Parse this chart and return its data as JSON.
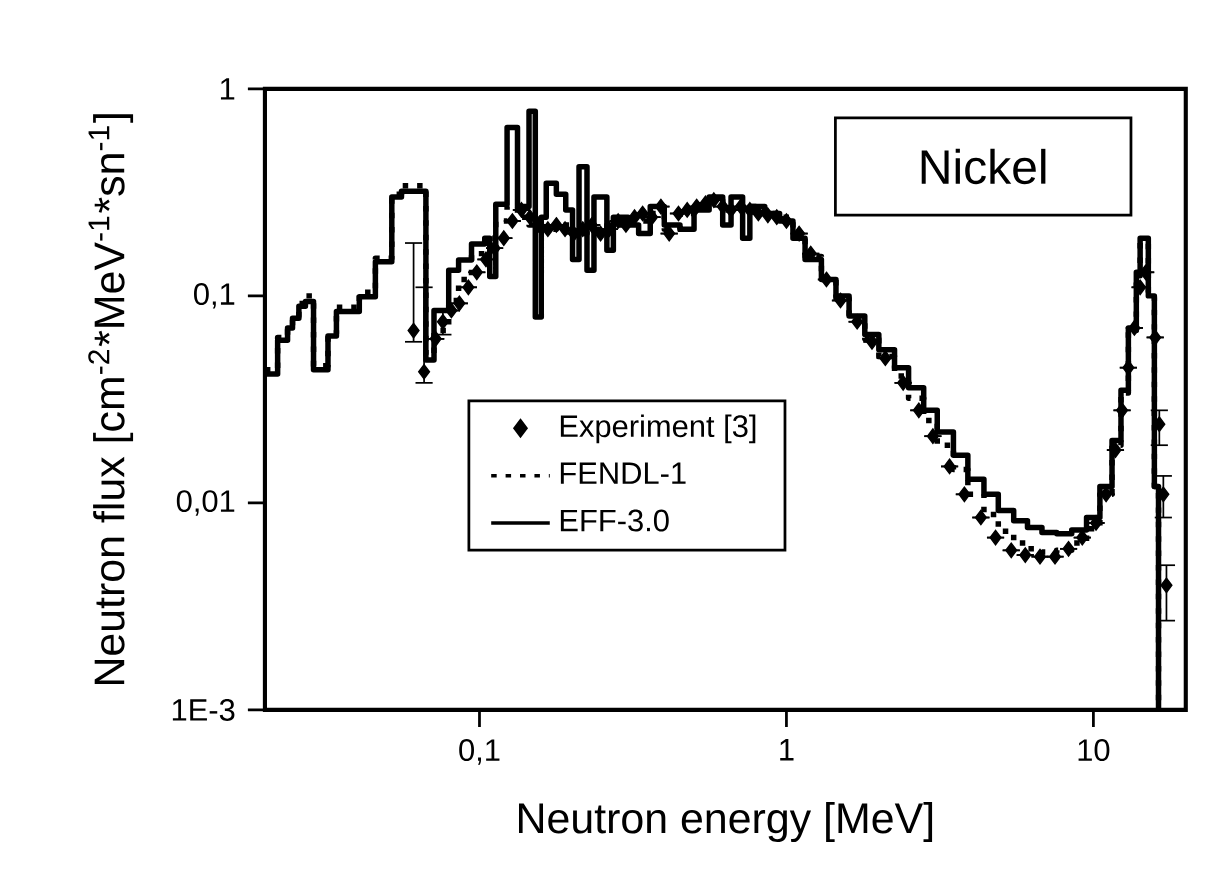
{
  "chart_data": {
    "type": "step",
    "xlabel": "Neutron energy [MeV]",
    "ylabel": "Neutron flux [cm$^{-2}$*MeV$^{-1}$*sn$^{-1}$]",
    "annotations": [
      "Nickel"
    ],
    "log": "xy",
    "xlim": [
      0.02,
      20
    ],
    "ylim": [
      0.001,
      1
    ],
    "xticks": [
      {
        "value": 0.1,
        "label": "0,1"
      },
      1,
      10
    ],
    "yticks": [
      {
        "value": 0.001,
        "label": "1E-3"
      },
      {
        "value": 0.01,
        "label": "0,01"
      },
      {
        "value": 0.1,
        "label": "0,1"
      },
      1
    ],
    "legend": "center left",
    "series": [
      {
        "name": "Experiment [3]",
        "type": "scatter",
        "color": "#000000",
        "marker": "diamond",
        "x": [
          0.061,
          0.066,
          0.072,
          0.076,
          0.081,
          0.086,
          0.092,
          0.098,
          0.105,
          0.112,
          0.12,
          0.128,
          0.137,
          0.146,
          0.156,
          0.167,
          0.178,
          0.19,
          0.203,
          0.217,
          0.232,
          0.248,
          0.265,
          0.283,
          0.3,
          0.32,
          0.34,
          0.365,
          0.39,
          0.415,
          0.445,
          0.475,
          0.51,
          0.545,
          0.58,
          0.62,
          0.66,
          0.71,
          0.76,
          0.81,
          0.87,
          0.93,
          1.0,
          1.1,
          1.2,
          1.35,
          1.5,
          1.7,
          1.9,
          2.1,
          2.4,
          2.7,
          3.0,
          3.4,
          3.8,
          4.3,
          4.8,
          5.4,
          6.0,
          6.7,
          7.5,
          8.3,
          9.2,
          10.2,
          11.0,
          11.8,
          12.4,
          13.0,
          13.6,
          14.2,
          14.8,
          15.9,
          16.4,
          16.9,
          17.3
        ],
        "values": [
          0.068,
          0.043,
          0.062,
          0.075,
          0.085,
          0.092,
          0.11,
          0.13,
          0.15,
          0.17,
          0.19,
          0.23,
          0.26,
          0.24,
          0.22,
          0.21,
          0.22,
          0.21,
          0.2,
          0.21,
          0.22,
          0.2,
          0.21,
          0.23,
          0.22,
          0.24,
          0.25,
          0.24,
          0.27,
          0.2,
          0.25,
          0.26,
          0.27,
          0.28,
          0.29,
          0.27,
          0.26,
          0.27,
          0.26,
          0.25,
          0.245,
          0.24,
          0.23,
          0.2,
          0.16,
          0.12,
          0.095,
          0.075,
          0.06,
          0.05,
          0.038,
          0.028,
          0.021,
          0.015,
          0.011,
          0.0085,
          0.0068,
          0.0059,
          0.0056,
          0.0055,
          0.0055,
          0.006,
          0.0068,
          0.008,
          0.011,
          0.018,
          0.028,
          0.045,
          0.07,
          0.11,
          0.13,
          0.063,
          0.024,
          0.011,
          0.004
        ],
        "errors": [
          [
            0.06,
            0.18
          ],
          [
            0.038,
            0.11
          ],
          null,
          [
            0.065,
            0.085
          ],
          null,
          null,
          null,
          null,
          null,
          null,
          null,
          null,
          null,
          null,
          null,
          null,
          null,
          null,
          null,
          null,
          null,
          null,
          null,
          null,
          null,
          null,
          null,
          null,
          null,
          null,
          null,
          null,
          null,
          null,
          null,
          null,
          null,
          null,
          null,
          null,
          null,
          null,
          null,
          null,
          null,
          null,
          null,
          null,
          null,
          null,
          null,
          null,
          null,
          null,
          null,
          null,
          null,
          null,
          null,
          null,
          null,
          null,
          null,
          null,
          null,
          null,
          null,
          null,
          null,
          null,
          null,
          null,
          [
            0.019,
            0.028
          ],
          [
            0.0085,
            0.0135
          ],
          [
            0.0027,
            0.005
          ]
        ]
      },
      {
        "name": "FENDL-1",
        "color": "#000000",
        "line_style": "dotted",
        "marker": "none",
        "x": [
          0.02,
          0.022,
          0.0237,
          0.0246,
          0.0258,
          0.0271,
          0.0288,
          0.0321,
          0.0342,
          0.0406,
          0.0458,
          0.0518,
          0.0557,
          0.0669,
          0.0711,
          0.0794,
          0.0855,
          0.0942,
          0.104,
          0.113,
          0.123,
          0.133,
          0.145,
          0.159,
          0.178,
          0.201,
          0.224,
          0.26,
          0.305,
          0.36,
          0.4,
          0.45,
          0.5,
          0.56,
          0.62,
          0.72,
          0.85,
          0.95,
          1.05,
          1.15,
          1.3,
          1.45,
          1.6,
          1.8,
          2.0,
          2.25,
          2.5,
          2.8,
          3.1,
          3.5,
          3.9,
          4.4,
          4.9,
          5.5,
          6.1,
          6.8,
          7.6,
          8.5,
          9.5,
          10.5,
          11.5,
          12.3,
          13.0,
          13.8,
          14.2,
          15.1,
          15.8,
          16.3
        ],
        "values": [
          0.044,
          0.063,
          0.072,
          0.08,
          0.092,
          0.1,
          0.046,
          0.066,
          0.088,
          0.104,
          0.152,
          0.31,
          0.34,
          0.052,
          0.068,
          0.095,
          0.12,
          0.16,
          0.19,
          0.23,
          0.27,
          0.24,
          0.22,
          0.21,
          0.22,
          0.2,
          0.21,
          0.22,
          0.23,
          0.25,
          0.21,
          0.25,
          0.27,
          0.29,
          0.26,
          0.27,
          0.25,
          0.24,
          0.2,
          0.155,
          0.12,
          0.097,
          0.077,
          0.062,
          0.051,
          0.041,
          0.032,
          0.025,
          0.019,
          0.0145,
          0.011,
          0.0088,
          0.0073,
          0.0064,
          0.006,
          0.0058,
          0.0059,
          0.0064,
          0.0075,
          0.011,
          0.019,
          0.034,
          0.068,
          0.125,
          0.18,
          0.098,
          0.012,
          0.001
        ]
      },
      {
        "name": "EFF-3.0",
        "color": "#000000",
        "line_style": "solid",
        "marker": "none",
        "x": [
          0.02,
          0.022,
          0.0237,
          0.0246,
          0.0258,
          0.0271,
          0.0288,
          0.0321,
          0.0342,
          0.0406,
          0.0458,
          0.0518,
          0.0557,
          0.0669,
          0.0711,
          0.0794,
          0.0855,
          0.0942,
          0.104,
          0.108,
          0.113,
          0.123,
          0.133,
          0.145,
          0.152,
          0.159,
          0.165,
          0.178,
          0.191,
          0.201,
          0.211,
          0.224,
          0.236,
          0.26,
          0.273,
          0.286,
          0.305,
          0.33,
          0.36,
          0.4,
          0.45,
          0.5,
          0.56,
          0.62,
          0.66,
          0.72,
          0.76,
          0.85,
          0.95,
          1.05,
          1.15,
          1.3,
          1.45,
          1.6,
          1.8,
          2.0,
          2.25,
          2.5,
          2.8,
          3.1,
          3.5,
          3.9,
          4.4,
          4.9,
          5.5,
          6.1,
          6.8,
          7.6,
          8.5,
          9.5,
          10.5,
          11.5,
          12.3,
          13.0,
          13.8,
          14.2,
          15.1,
          15.8,
          16.3
        ],
        "values": [
          0.042,
          0.061,
          0.07,
          0.078,
          0.089,
          0.094,
          0.044,
          0.064,
          0.084,
          0.099,
          0.146,
          0.3,
          0.32,
          0.049,
          0.085,
          0.133,
          0.149,
          0.178,
          0.19,
          0.124,
          0.277,
          0.65,
          0.27,
          0.78,
          0.079,
          0.24,
          0.35,
          0.31,
          0.26,
          0.15,
          0.42,
          0.133,
          0.3,
          0.166,
          0.24,
          0.24,
          0.22,
          0.2,
          0.27,
          0.22,
          0.21,
          0.26,
          0.3,
          0.22,
          0.3,
          0.19,
          0.27,
          0.25,
          0.23,
          0.19,
          0.15,
          0.12,
          0.1,
          0.08,
          0.065,
          0.055,
          0.045,
          0.036,
          0.028,
          0.022,
          0.017,
          0.013,
          0.011,
          0.0092,
          0.0082,
          0.0076,
          0.0072,
          0.0071,
          0.0074,
          0.0085,
          0.012,
          0.02,
          0.035,
          0.07,
          0.13,
          0.19,
          0.1,
          0.012,
          0.001
        ]
      }
    ]
  }
}
